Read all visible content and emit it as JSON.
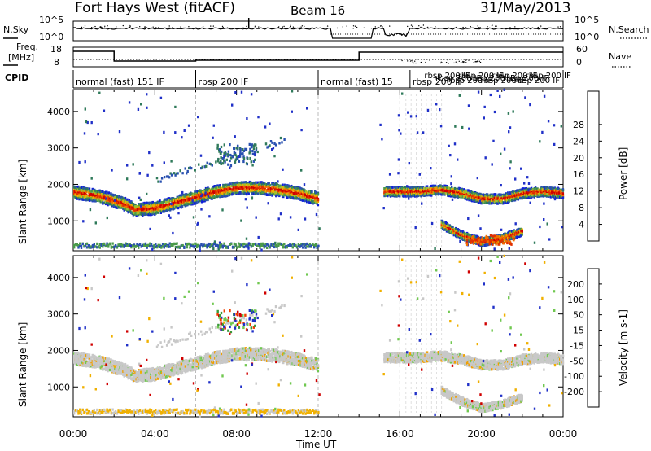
{
  "header": {
    "title": "Fort Hays West (fitACF)",
    "beam": "Beam 16",
    "date": "31/May/2013"
  },
  "labels": {
    "nsky": "N.Sky",
    "nsearch": "N.Search",
    "freq_line1": "Freq.",
    "freq_line2": "[MHz]",
    "nave": "Nave",
    "cpid": "CPID",
    "noise_tick_top": "10^5",
    "noise_tick_bot": "10^0",
    "freq_tick_top": "18",
    "freq_tick_bot": "8",
    "nave_tick_top": "60",
    "nave_tick_bot": "0",
    "time_axis": "Time UT",
    "range_axis_power": "Slant Range [km]",
    "range_axis_vel": "Slant Range [km]"
  },
  "cpid_segments": [
    {
      "start": 0.0,
      "end": 6.0,
      "label": "normal (fast) 151 IF"
    },
    {
      "start": 6.0,
      "end": 12.0,
      "label": "rbsp 200 IF"
    },
    {
      "start": 12.0,
      "end": 16.5,
      "label": "normal (fast) 15"
    },
    {
      "start": 16.5,
      "end": 24.0,
      "label": "rbsp 200 IF"
    }
  ],
  "chart_data": [
    {
      "type": "heatmap",
      "name": "power",
      "xlabel": "Time UT",
      "ylabel": "Slant Range [km]",
      "xlim": [
        0,
        24
      ],
      "ylim": [
        180,
        4600
      ],
      "x_ticks": [
        "00:00",
        "04:00",
        "08:00",
        "12:00",
        "16:00",
        "20:00",
        "00:00"
      ],
      "y_ticks": [
        1000,
        2000,
        3000,
        4000
      ],
      "colorbar": {
        "label": "Power [dB]",
        "ticks": [
          "4",
          "8",
          "12",
          "16",
          "20",
          "24",
          "28"
        ],
        "colors": [
          "#1020d8",
          "#2850b0",
          "#2f7a5a",
          "#4a9a4a",
          "#a0c030",
          "#f0b000",
          "#f07000",
          "#e03000",
          "#d00000"
        ]
      },
      "bands": [
        {
          "t": [
            0.0,
            1.0,
            1.7,
            2.5,
            3.0,
            4.0,
            5.0,
            6.0,
            7.0,
            8.0,
            9.0,
            10.0,
            11.0,
            12.0
          ],
          "r": [
            1780,
            1700,
            1600,
            1450,
            1300,
            1350,
            1500,
            1650,
            1800,
            1900,
            1900,
            1850,
            1750,
            1600
          ],
          "w": 170
        },
        {
          "t": [
            15.2,
            16.0,
            17.0,
            18.0,
            19.0,
            20.0,
            21.0,
            22.0,
            23.0,
            24.0
          ],
          "r": [
            1800,
            1800,
            1800,
            1850,
            1750,
            1600,
            1600,
            1750,
            1800,
            1750
          ],
          "w": 130
        },
        {
          "t": [
            18.0,
            19.0,
            20.0,
            21.0,
            22.0
          ],
          "r": [
            900,
            600,
            420,
            520,
            720
          ],
          "w": 110
        }
      ]
    },
    {
      "type": "heatmap",
      "name": "velocity",
      "xlabel": "Time UT",
      "ylabel": "Slant Range [km]",
      "xlim": [
        0,
        24
      ],
      "ylim": [
        180,
        4600
      ],
      "x_ticks": [
        "00:00",
        "04:00",
        "08:00",
        "12:00",
        "16:00",
        "20:00",
        "00:00"
      ],
      "y_ticks": [
        1000,
        2000,
        3000,
        4000
      ],
      "colorbar": {
        "label": "Velocity [m s-1]",
        "ticks": [
          "200",
          "100",
          "50",
          "15",
          "-15",
          "-50",
          "-100",
          "-200"
        ],
        "colors": [
          "#2030c8",
          "#2a6a6a",
          "#3a9a3a",
          "#70c850",
          "#c8c8c8",
          "#f0b000",
          "#f08000",
          "#f04000",
          "#d00000"
        ]
      }
    }
  ]
}
